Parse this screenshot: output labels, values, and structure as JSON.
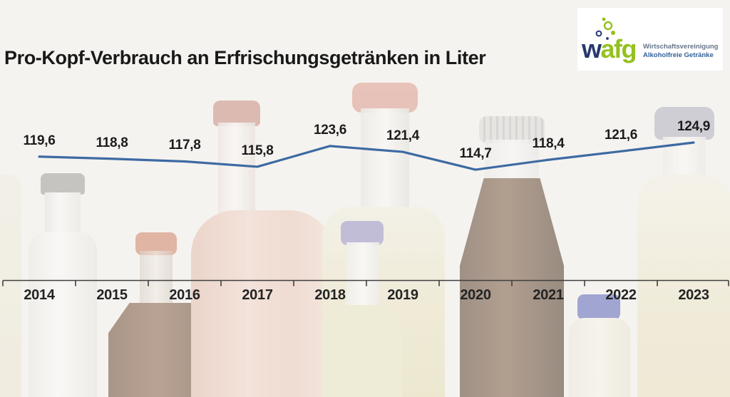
{
  "title": "Pro-Kopf-Verbrauch an Erfrischungsgetränken in Liter",
  "logo": {
    "brand_part1": "w",
    "brand_part2": "afg",
    "tagline_line1": "Wirtschaftsvereinigung",
    "tagline_line2": "Alkoholfreie Getränke",
    "colors": {
      "navy": "#27376e",
      "green": "#94c11f",
      "tagline1": "#66748a",
      "tagline2": "#33619c"
    }
  },
  "chart_data": {
    "type": "line",
    "title": "Pro-Kopf-Verbrauch an Erfrischungsgetränken in Liter",
    "unit": "Liter",
    "categories": [
      "2014",
      "2015",
      "2016",
      "2017",
      "2018",
      "2019",
      "2020",
      "2021",
      "2022",
      "2023"
    ],
    "values": [
      119.6,
      118.8,
      117.8,
      115.8,
      123.6,
      121.4,
      114.7,
      118.4,
      121.6,
      124.9
    ],
    "value_labels": [
      "119,6",
      "118,8",
      "117,8",
      "115,8",
      "123,6",
      "121,4",
      "114,7",
      "118,4",
      "121,6",
      "124,9"
    ],
    "ylim": [
      110,
      130
    ],
    "grid": false,
    "legend": false,
    "line_color": "#3d6aa2",
    "label_color": "#1c1c1c",
    "axis_color": "#3f3f3f"
  }
}
